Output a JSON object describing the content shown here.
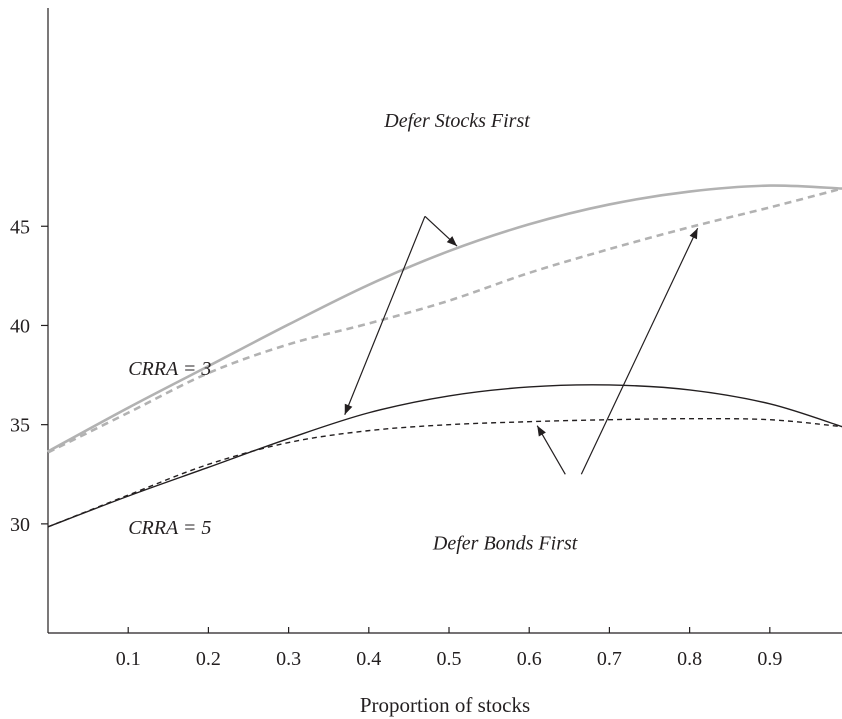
{
  "chart_data": {
    "type": "line",
    "title": "",
    "xlabel": "Proportion of stocks",
    "ylabel": "",
    "xlim": [
      0,
      0.99
    ],
    "ylim": [
      24.5,
      56
    ],
    "xticks": [
      0.1,
      0.2,
      0.3,
      0.4,
      0.5,
      0.6,
      0.7,
      0.8,
      0.9
    ],
    "xtick_labels": [
      "0.1",
      "0.2",
      "0.3",
      "0.4",
      "0.5",
      "0.6",
      "0.7",
      "0.8",
      "0.9"
    ],
    "yticks": [
      30,
      35,
      40,
      45
    ],
    "ytick_labels": [
      "30",
      "35",
      "40",
      "45"
    ],
    "grid": false,
    "series": [
      {
        "x": [
          0,
          0.1,
          0.2,
          0.3,
          0.4,
          0.5,
          0.6,
          0.7,
          0.8,
          0.9,
          0.99
        ],
        "y": [
          33.65,
          35.85,
          37.95,
          40.05,
          42.05,
          43.75,
          45.1,
          46.1,
          46.75,
          47.05,
          46.9
        ],
        "color": "#b2b2b2",
        "style": "solid"
      },
      {
        "x": [
          0,
          0.1,
          0.2,
          0.3,
          0.4,
          0.5,
          0.6,
          0.7,
          0.8,
          0.9,
          0.99
        ],
        "y": [
          33.6,
          35.6,
          37.6,
          39.05,
          40.1,
          41.25,
          42.65,
          43.85,
          44.95,
          45.95,
          46.9
        ],
        "color": "#b2b2b2",
        "style": "dashed"
      },
      {
        "x": [
          0,
          0.1,
          0.2,
          0.3,
          0.4,
          0.5,
          0.6,
          0.7,
          0.8,
          0.9,
          0.99
        ],
        "y": [
          29.85,
          31.4,
          32.85,
          34.3,
          35.6,
          36.45,
          36.9,
          37.0,
          36.75,
          36.05,
          34.9
        ],
        "color": "#231f20",
        "style": "solid"
      },
      {
        "x": [
          0,
          0.1,
          0.2,
          0.3,
          0.4,
          0.5,
          0.6,
          0.7,
          0.8,
          0.9,
          0.99
        ],
        "y": [
          29.85,
          31.45,
          33.0,
          34.1,
          34.7,
          35.0,
          35.15,
          35.25,
          35.3,
          35.25,
          34.9
        ],
        "color": "#231f20",
        "style": "dashed"
      }
    ],
    "annotations": [
      {
        "text": "Defer Stocks First",
        "x": 0.51,
        "y": 50.0
      },
      {
        "text": "Defer Bonds First",
        "x": 0.57,
        "y": 28.7
      },
      {
        "text": "CRRA = 3",
        "x": 0.1,
        "y": 37.5
      },
      {
        "text": "CRRA = 5",
        "x": 0.1,
        "y": 29.5
      }
    ],
    "arrows": [
      {
        "from": [
          0.47,
          45.5
        ],
        "to": [
          0.51,
          44.0
        ]
      },
      {
        "from": [
          0.47,
          45.5
        ],
        "to": [
          0.37,
          35.5
        ]
      },
      {
        "from": [
          0.645,
          32.5
        ],
        "to": [
          0.61,
          34.95
        ]
      },
      {
        "from": [
          0.665,
          32.5
        ],
        "to": [
          0.81,
          44.9
        ]
      }
    ]
  }
}
